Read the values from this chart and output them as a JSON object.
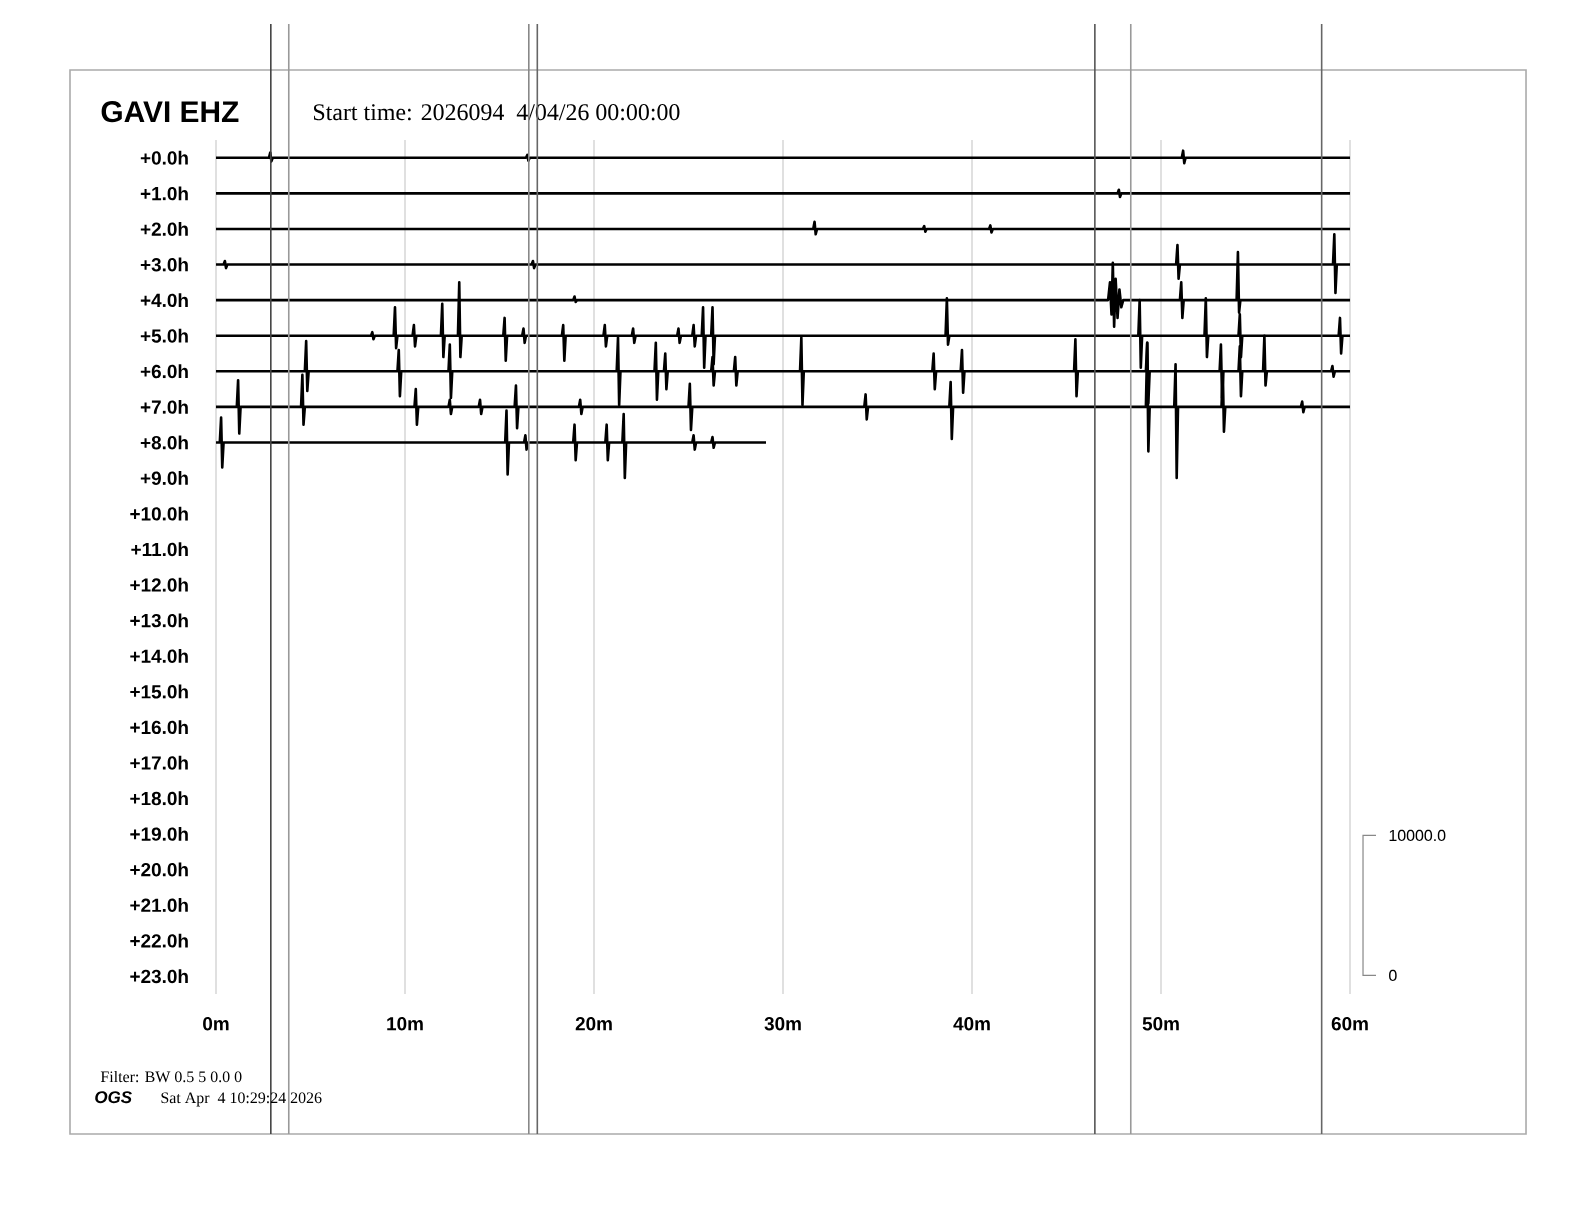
{
  "chart_data": {
    "type": "line",
    "title": "GAVI EHZ",
    "subtitle": "Start time: 2026094  4/04/26 00:00:00",
    "xlim": [
      0,
      60
    ],
    "ylim": [
      23.5,
      -0.5
    ],
    "xticks": [
      {
        "value": 0,
        "label": "0m"
      },
      {
        "value": 10,
        "label": "10m"
      },
      {
        "value": 20,
        "label": "20m"
      },
      {
        "value": 30,
        "label": "30m"
      },
      {
        "value": 40,
        "label": "40m"
      },
      {
        "value": 50,
        "label": "50m"
      },
      {
        "value": 60,
        "label": "60m"
      }
    ],
    "yticks": [
      {
        "value": 0,
        "label": "+0.0h"
      },
      {
        "value": 1,
        "label": "+1.0h"
      },
      {
        "value": 2,
        "label": "+2.0h"
      },
      {
        "value": 3,
        "label": "+3.0h"
      },
      {
        "value": 4,
        "label": "+4.0h"
      },
      {
        "value": 5,
        "label": "+5.0h"
      },
      {
        "value": 6,
        "label": "+6.0h"
      },
      {
        "value": 7,
        "label": "+7.0h"
      },
      {
        "value": 8,
        "label": "+8.0h"
      },
      {
        "value": 9,
        "label": "+9.0h"
      },
      {
        "value": 10,
        "label": "+10.0h"
      },
      {
        "value": 11,
        "label": "+11.0h"
      },
      {
        "value": 12,
        "label": "+12.0h"
      },
      {
        "value": 13,
        "label": "+13.0h"
      },
      {
        "value": 14,
        "label": "+14.0h"
      },
      {
        "value": 15,
        "label": "+15.0h"
      },
      {
        "value": 16,
        "label": "+16.0h"
      },
      {
        "value": 17,
        "label": "+17.0h"
      },
      {
        "value": 18,
        "label": "+18.0h"
      },
      {
        "value": 19,
        "label": "+19.0h"
      },
      {
        "value": 20,
        "label": "+20.0h"
      },
      {
        "value": 21,
        "label": "+21.0h"
      },
      {
        "value": 22,
        "label": "+22.0h"
      },
      {
        "value": 23,
        "label": "+23.0h"
      }
    ],
    "grid": "x",
    "series": [
      {
        "color": "#000000",
        "x": [
          0,
          2.8,
          2.87,
          2.93,
          3.0,
          16.4,
          16.47,
          16.53,
          16.6,
          51.1,
          51.17,
          51.23,
          51.3,
          60
        ],
        "values": [
          0,
          0,
          -0.15,
          0.1,
          0,
          0,
          -0.08,
          0.08,
          0,
          0,
          -0.2,
          0.15,
          0,
          0
        ]
      },
      {
        "color": "#000000",
        "x": [
          0,
          47.7,
          47.77,
          47.83,
          47.9,
          60
        ],
        "values": [
          1,
          1,
          0.9,
          1.1,
          1,
          1
        ]
      },
      {
        "color": "#000000",
        "x": [
          0,
          31.6,
          31.67,
          31.73,
          31.8,
          37.4,
          37.47,
          37.53,
          37.6,
          40.9,
          40.97,
          41.03,
          41.1,
          60
        ],
        "values": [
          2,
          2,
          1.8,
          2.15,
          2,
          2,
          1.92,
          2.08,
          2,
          2,
          1.9,
          2.1,
          2,
          2
        ]
      },
      {
        "color": "#000000",
        "x": [
          0,
          0.4,
          0.47,
          0.53,
          0.6,
          16.7,
          16.77,
          16.83,
          16.9,
          50.8,
          50.87,
          50.93,
          51.0,
          59.1,
          59.17,
          59.23,
          59.3,
          60
        ],
        "values": [
          3,
          3,
          2.9,
          3.1,
          3,
          3,
          2.9,
          3.1,
          3,
          3,
          2.45,
          3.4,
          3,
          3,
          2.15,
          3.8,
          3,
          3
        ]
      },
      {
        "color": "#000000",
        "x": [
          0,
          18.9,
          18.97,
          19.03,
          19.1,
          47.2,
          47.3,
          47.38,
          47.45,
          47.52,
          47.6,
          47.7,
          47.8,
          47.9,
          48.0,
          51.0,
          51.07,
          51.13,
          51.2,
          54.0,
          54.07,
          54.13,
          54.2,
          60
        ],
        "values": [
          4,
          4,
          3.9,
          4.05,
          4,
          4,
          3.5,
          4.4,
          2.95,
          4.75,
          3.4,
          4.5,
          3.7,
          4.2,
          4,
          4,
          3.5,
          4.5,
          4,
          4,
          2.65,
          4.35,
          4,
          4
        ]
      },
      {
        "color": "#000000",
        "x": [
          0,
          8.2,
          8.27,
          8.33,
          8.4,
          9.4,
          9.47,
          9.53,
          9.6,
          10.4,
          10.47,
          10.53,
          10.6,
          11.9,
          11.97,
          12.03,
          12.1,
          12.8,
          12.87,
          12.93,
          13.0,
          15.2,
          15.27,
          15.33,
          15.4,
          16.2,
          16.27,
          16.33,
          16.4,
          18.3,
          18.37,
          18.43,
          18.5,
          20.5,
          20.57,
          20.63,
          20.7,
          22.0,
          22.07,
          22.13,
          22.2,
          24.4,
          24.47,
          24.53,
          24.6,
          25.2,
          25.27,
          25.33,
          25.4,
          25.7,
          25.77,
          25.83,
          25.9,
          26.2,
          26.27,
          26.33,
          26.4,
          38.6,
          38.67,
          38.73,
          38.8,
          48.8,
          48.87,
          48.93,
          49.0,
          52.3,
          52.37,
          52.43,
          52.5,
          54.1,
          54.17,
          54.23,
          54.3,
          59.4,
          59.47,
          59.53,
          59.6,
          60
        ],
        "values": [
          5,
          5,
          4.9,
          5.1,
          5,
          5,
          4.2,
          5.35,
          5,
          5,
          4.7,
          5.3,
          5,
          5,
          4.1,
          5.6,
          5,
          5,
          3.5,
          5.6,
          5,
          5,
          4.5,
          5.7,
          5,
          5,
          4.8,
          5.2,
          5,
          5,
          4.7,
          5.7,
          5,
          5,
          4.7,
          5.3,
          5,
          5,
          4.8,
          5.2,
          5,
          5,
          4.8,
          5.2,
          5,
          5,
          4.7,
          5.3,
          5,
          5,
          4.2,
          5.9,
          5,
          5,
          4.2,
          5.8,
          5,
          5,
          3.95,
          5.25,
          5,
          5,
          4.0,
          5.9,
          5,
          5,
          3.95,
          5.6,
          5,
          5,
          4.4,
          5.6,
          5,
          5,
          4.5,
          5.5,
          5,
          5
        ]
      },
      {
        "color": "#000000",
        "x": [
          0,
          4.7,
          4.77,
          4.83,
          4.9,
          9.6,
          9.67,
          9.73,
          9.8,
          12.3,
          12.37,
          12.43,
          12.5,
          21.2,
          21.27,
          21.33,
          21.4,
          23.2,
          23.27,
          23.33,
          23.4,
          23.7,
          23.77,
          23.83,
          23.9,
          26.2,
          26.27,
          26.33,
          26.4,
          27.4,
          27.47,
          27.53,
          27.6,
          30.9,
          30.97,
          31.03,
          31.1,
          37.9,
          37.97,
          38.03,
          38.1,
          39.4,
          39.47,
          39.53,
          39.6,
          45.4,
          45.47,
          45.53,
          45.6,
          49.2,
          49.27,
          49.33,
          49.4,
          53.1,
          53.17,
          53.23,
          53.3,
          54.1,
          54.17,
          54.23,
          54.3,
          55.4,
          55.47,
          55.53,
          55.6,
          59.0,
          59.07,
          59.13,
          59.2,
          60
        ],
        "values": [
          6,
          6,
          5.15,
          6.55,
          6,
          6,
          5.4,
          6.7,
          6,
          6,
          5.25,
          6.75,
          6,
          6,
          5.05,
          6.95,
          6,
          6,
          5.2,
          6.8,
          6,
          6,
          5.5,
          6.5,
          6,
          6,
          5.6,
          6.4,
          6,
          6,
          5.6,
          6.4,
          6,
          6,
          5.05,
          6.95,
          6,
          6,
          5.5,
          6.5,
          6,
          6,
          5.4,
          6.6,
          6,
          6,
          5.1,
          6.7,
          6,
          6,
          5.2,
          6.9,
          6,
          6,
          5.25,
          6.75,
          6,
          6,
          5.3,
          6.7,
          6,
          6,
          5.0,
          6.4,
          6,
          6,
          5.85,
          6.15,
          6,
          6
        ]
      },
      {
        "color": "#000000",
        "x": [
          0,
          1.1,
          1.17,
          1.23,
          1.3,
          4.5,
          4.57,
          4.63,
          4.7,
          10.5,
          10.57,
          10.63,
          10.7,
          12.3,
          12.37,
          12.43,
          12.5,
          13.9,
          13.97,
          14.03,
          14.1,
          15.8,
          15.87,
          15.93,
          16.0,
          19.2,
          19.27,
          19.33,
          19.4,
          25.0,
          25.07,
          25.13,
          25.2,
          34.3,
          34.37,
          34.43,
          34.5,
          38.8,
          38.87,
          38.93,
          39.0,
          49.2,
          49.27,
          49.33,
          49.4,
          50.7,
          50.77,
          50.83,
          50.9,
          53.2,
          53.27,
          53.33,
          53.4,
          57.4,
          57.47,
          57.53,
          57.6,
          60
        ],
        "values": [
          7,
          7,
          6.25,
          7.75,
          7,
          7,
          6.1,
          7.5,
          7,
          7,
          6.5,
          7.5,
          7,
          7,
          6.8,
          7.2,
          7,
          7,
          6.8,
          7.2,
          7,
          7,
          6.4,
          7.6,
          7,
          7,
          6.8,
          7.2,
          7,
          7,
          6.35,
          7.65,
          7,
          7,
          6.65,
          7.35,
          7,
          7,
          6.3,
          7.9,
          7,
          7,
          5.2,
          8.25,
          7,
          7,
          5.8,
          9.0,
          7,
          7,
          6.0,
          7.7,
          7,
          7,
          6.85,
          7.15,
          7,
          7
        ]
      },
      {
        "color": "#000000",
        "x": [
          0,
          0.2,
          0.27,
          0.33,
          0.4,
          15.3,
          15.37,
          15.43,
          15.5,
          16.3,
          16.37,
          16.43,
          16.5,
          18.9,
          18.97,
          19.03,
          19.1,
          20.6,
          20.67,
          20.73,
          20.8,
          21.5,
          21.57,
          21.63,
          21.7,
          25.2,
          25.27,
          25.33,
          25.4,
          26.2,
          26.27,
          26.33,
          26.4,
          29.1
        ],
        "values": [
          8,
          8,
          7.3,
          8.7,
          8,
          8,
          7.1,
          8.9,
          8,
          8,
          7.8,
          8.2,
          8,
          8,
          7.5,
          8.5,
          8,
          8,
          7.5,
          8.5,
          8,
          8,
          7.2,
          9.0,
          8,
          8,
          7.8,
          8.2,
          8,
          8,
          7.85,
          8.15,
          8,
          8
        ]
      }
    ],
    "ref_lines": [
      {
        "axis": "x",
        "value": 2.9,
        "color": "#444444"
      },
      {
        "axis": "x",
        "value": 3.85,
        "color": "#999999"
      },
      {
        "axis": "x",
        "value": 16.55,
        "color": "#888888"
      },
      {
        "axis": "x",
        "value": 17.0,
        "color": "#666666"
      },
      {
        "axis": "x",
        "value": 46.5,
        "color": "#555555"
      },
      {
        "axis": "x",
        "value": 48.4,
        "color": "#999999"
      },
      {
        "axis": "x",
        "value": 58.5,
        "color": "#666666"
      }
    ],
    "annotations": [
      "10000.0",
      "0",
      "Filter: BW 0.5 5 0.0 0",
      "OGS",
      "Sat Apr  4 10:29:24 2026"
    ]
  }
}
